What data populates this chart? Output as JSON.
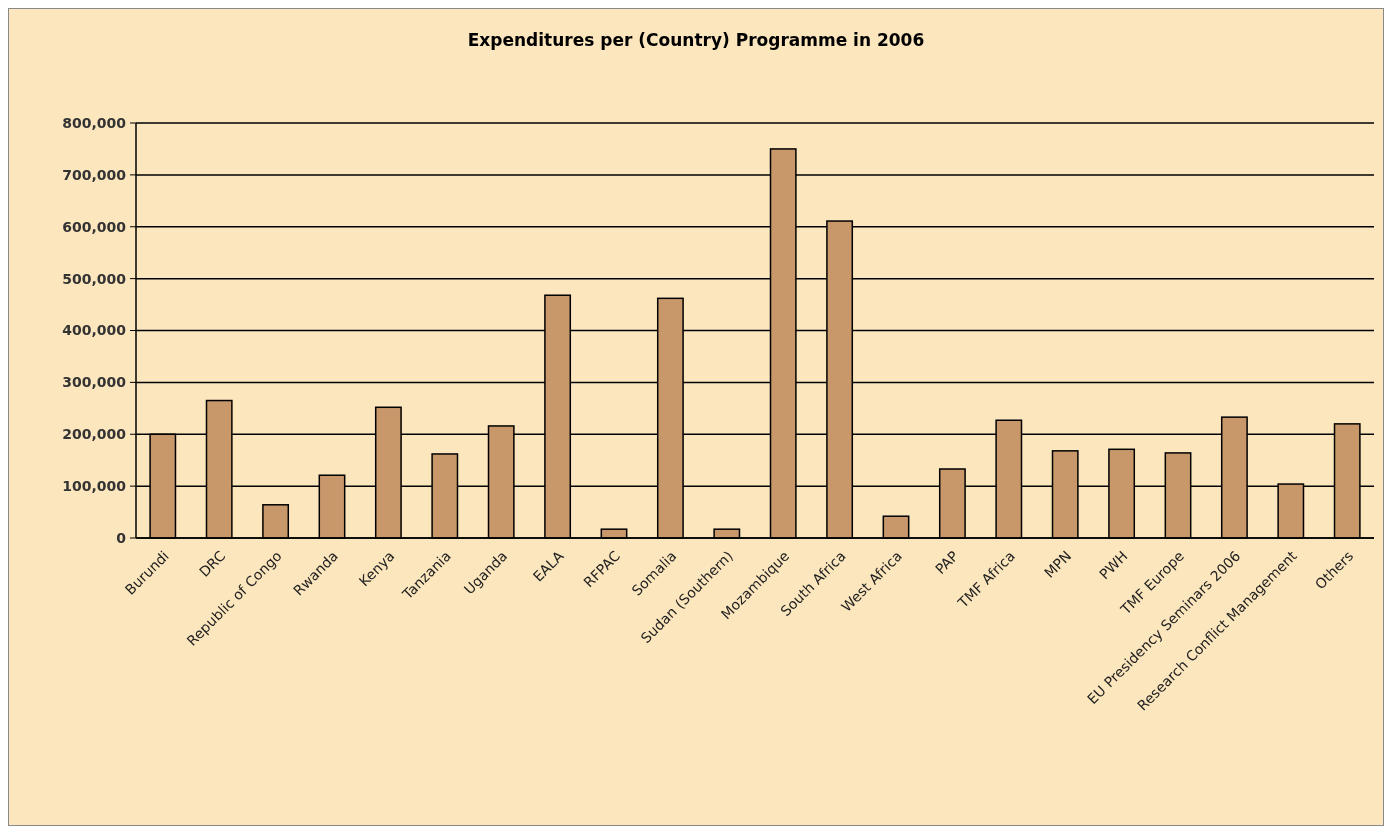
{
  "chart_data": {
    "type": "bar",
    "title": "Expenditures per (Country) Programme in 2006",
    "categories": [
      "Burundi",
      "DRC",
      "Republic of Congo",
      "Rwanda",
      "Kenya",
      "Tanzania",
      "Uganda",
      "EALA",
      "RFPAC",
      "Somalia",
      "Sudan (Southern)",
      "Mozambique",
      "South Africa",
      "West Africa",
      "PAP",
      "TMF Africa",
      "MPN",
      "PWH",
      "TMF Europe",
      "EU Presidency Seminars 2006",
      "Research Conflict Management",
      "Others"
    ],
    "values": [
      200000,
      265000,
      64000,
      121000,
      252000,
      162000,
      216000,
      468000,
      17000,
      462000,
      17000,
      750000,
      611000,
      42000,
      133000,
      227000,
      168000,
      171000,
      164000,
      233000,
      104000,
      220000
    ],
    "color": "#c8976a",
    "ylim": [
      0,
      800000
    ],
    "yticks": [
      {
        "value": 0,
        "label": "0"
      },
      {
        "value": 100000,
        "label": "100,000"
      },
      {
        "value": 200000,
        "label": "200,000"
      },
      {
        "value": 300000,
        "label": "300,000"
      },
      {
        "value": 400000,
        "label": "400,000"
      },
      {
        "value": 500000,
        "label": "500,000"
      },
      {
        "value": 600000,
        "label": "600,000"
      },
      {
        "value": 700000,
        "label": "700,000"
      },
      {
        "value": 800000,
        "label": "800,000"
      }
    ],
    "grid": "y"
  }
}
